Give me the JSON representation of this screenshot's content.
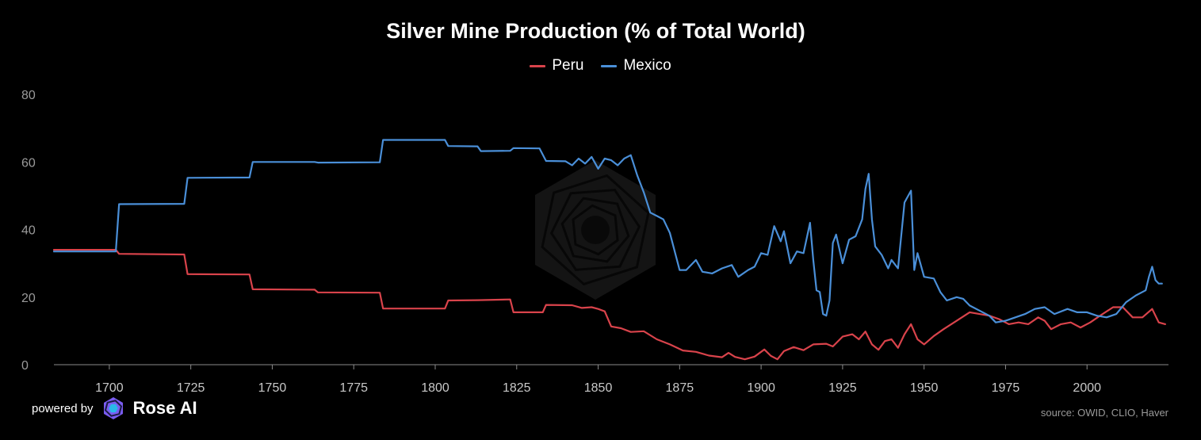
{
  "chart_data": {
    "type": "line",
    "title": "Silver Mine Production (% of Total World)",
    "xlabel": "",
    "ylabel": "",
    "xlim": [
      1683,
      2025
    ],
    "ylim": [
      0,
      80
    ],
    "x_ticks": [
      "1700",
      "1725",
      "1750",
      "1775",
      "1800",
      "1825",
      "1850",
      "1875",
      "1900",
      "1925",
      "1950",
      "1975",
      "2000"
    ],
    "y_ticks": [
      "80",
      "60",
      "40",
      "20",
      "0"
    ],
    "grid": false,
    "legend_position": "top-center",
    "series": [
      {
        "name": "Peru",
        "color": "#d9434b",
        "points": [
          [
            1683,
            34.0
          ],
          [
            1702,
            34.0
          ],
          [
            1703,
            32.8
          ],
          [
            1723,
            32.6
          ],
          [
            1724,
            26.8
          ],
          [
            1743,
            26.7
          ],
          [
            1744,
            22.3
          ],
          [
            1763,
            22.2
          ],
          [
            1764,
            21.4
          ],
          [
            1783,
            21.3
          ],
          [
            1784,
            16.6
          ],
          [
            1803,
            16.6
          ],
          [
            1804,
            19.0
          ],
          [
            1813,
            19.1
          ],
          [
            1823,
            19.3
          ],
          [
            1824,
            15.5
          ],
          [
            1833,
            15.5
          ],
          [
            1834,
            17.7
          ],
          [
            1842,
            17.6
          ],
          [
            1845,
            16.8
          ],
          [
            1848,
            17.0
          ],
          [
            1850,
            16.5
          ],
          [
            1852,
            15.8
          ],
          [
            1854,
            11.3
          ],
          [
            1857,
            10.8
          ],
          [
            1860,
            9.7
          ],
          [
            1864,
            9.9
          ],
          [
            1868,
            7.5
          ],
          [
            1872,
            6.0
          ],
          [
            1876,
            4.2
          ],
          [
            1880,
            3.8
          ],
          [
            1884,
            2.7
          ],
          [
            1888,
            2.2
          ],
          [
            1890,
            3.5
          ],
          [
            1892,
            2.3
          ],
          [
            1895,
            1.6
          ],
          [
            1898,
            2.4
          ],
          [
            1901,
            4.5
          ],
          [
            1903,
            2.6
          ],
          [
            1905,
            1.6
          ],
          [
            1907,
            4.0
          ],
          [
            1910,
            5.2
          ],
          [
            1913,
            4.3
          ],
          [
            1916,
            6.0
          ],
          [
            1920,
            6.2
          ],
          [
            1922,
            5.4
          ],
          [
            1925,
            8.3
          ],
          [
            1928,
            9.0
          ],
          [
            1930,
            7.5
          ],
          [
            1932,
            9.8
          ],
          [
            1934,
            6.0
          ],
          [
            1936,
            4.4
          ],
          [
            1938,
            7.0
          ],
          [
            1940,
            7.5
          ],
          [
            1942,
            5.0
          ],
          [
            1944,
            9.0
          ],
          [
            1946,
            12.0
          ],
          [
            1948,
            7.5
          ],
          [
            1950,
            6.0
          ],
          [
            1953,
            8.5
          ],
          [
            1956,
            10.5
          ],
          [
            1960,
            13.0
          ],
          [
            1964,
            15.5
          ],
          [
            1967,
            15.0
          ],
          [
            1970,
            14.5
          ],
          [
            1973,
            13.5
          ],
          [
            1976,
            12.0
          ],
          [
            1979,
            12.5
          ],
          [
            1982,
            12.0
          ],
          [
            1985,
            14.0
          ],
          [
            1987,
            13.0
          ],
          [
            1989,
            10.5
          ],
          [
            1992,
            12.0
          ],
          [
            1995,
            12.5
          ],
          [
            1998,
            11.0
          ],
          [
            2001,
            12.5
          ],
          [
            2004,
            14.5
          ],
          [
            2008,
            17.0
          ],
          [
            2011,
            17.0
          ],
          [
            2014,
            14.0
          ],
          [
            2017,
            14.0
          ],
          [
            2020,
            16.5
          ],
          [
            2022,
            12.5
          ],
          [
            2024,
            12.0
          ]
        ]
      },
      {
        "name": "Mexico",
        "color": "#4a8fd8",
        "points": [
          [
            1683,
            33.5
          ],
          [
            1702,
            33.5
          ],
          [
            1703,
            47.5
          ],
          [
            1723,
            47.6
          ],
          [
            1724,
            55.3
          ],
          [
            1743,
            55.4
          ],
          [
            1744,
            60.0
          ],
          [
            1763,
            60.0
          ],
          [
            1764,
            59.8
          ],
          [
            1783,
            59.9
          ],
          [
            1784,
            66.5
          ],
          [
            1803,
            66.5
          ],
          [
            1804,
            64.7
          ],
          [
            1813,
            64.6
          ],
          [
            1814,
            63.2
          ],
          [
            1823,
            63.3
          ],
          [
            1824,
            64.1
          ],
          [
            1832,
            64.0
          ],
          [
            1834,
            60.3
          ],
          [
            1840,
            60.2
          ],
          [
            1842,
            59.0
          ],
          [
            1844,
            61.0
          ],
          [
            1846,
            59.5
          ],
          [
            1848,
            61.5
          ],
          [
            1850,
            58.0
          ],
          [
            1852,
            61.0
          ],
          [
            1854,
            60.5
          ],
          [
            1856,
            59.0
          ],
          [
            1858,
            61.0
          ],
          [
            1860,
            62.0
          ],
          [
            1862,
            56.0
          ],
          [
            1864,
            51.0
          ],
          [
            1866,
            45.0
          ],
          [
            1868,
            44.0
          ],
          [
            1870,
            43.0
          ],
          [
            1872,
            39.0
          ],
          [
            1875,
            28.0
          ],
          [
            1877,
            28.0
          ],
          [
            1880,
            31.0
          ],
          [
            1882,
            27.5
          ],
          [
            1885,
            27.0
          ],
          [
            1888,
            28.5
          ],
          [
            1891,
            29.5
          ],
          [
            1893,
            26.0
          ],
          [
            1896,
            28.0
          ],
          [
            1898,
            29.0
          ],
          [
            1900,
            33.0
          ],
          [
            1902,
            32.5
          ],
          [
            1904,
            41.0
          ],
          [
            1906,
            36.5
          ],
          [
            1907,
            39.5
          ],
          [
            1909,
            30.0
          ],
          [
            1911,
            33.5
          ],
          [
            1913,
            33.0
          ],
          [
            1915,
            42.0
          ],
          [
            1916,
            31.0
          ],
          [
            1917,
            22.0
          ],
          [
            1918,
            21.5
          ],
          [
            1919,
            15.0
          ],
          [
            1920,
            14.5
          ],
          [
            1921,
            19.0
          ],
          [
            1922,
            36.0
          ],
          [
            1923,
            38.5
          ],
          [
            1925,
            30.0
          ],
          [
            1927,
            37.0
          ],
          [
            1929,
            38.0
          ],
          [
            1931,
            43.0
          ],
          [
            1932,
            52.0
          ],
          [
            1933,
            56.5
          ],
          [
            1934,
            43.0
          ],
          [
            1935,
            35.0
          ],
          [
            1937,
            32.5
          ],
          [
            1939,
            28.5
          ],
          [
            1940,
            31.0
          ],
          [
            1942,
            28.5
          ],
          [
            1944,
            48.0
          ],
          [
            1946,
            51.5
          ],
          [
            1947,
            28.0
          ],
          [
            1948,
            33.0
          ],
          [
            1950,
            26.0
          ],
          [
            1953,
            25.5
          ],
          [
            1955,
            21.5
          ],
          [
            1957,
            19.0
          ],
          [
            1960,
            20.0
          ],
          [
            1962,
            19.5
          ],
          [
            1964,
            17.5
          ],
          [
            1967,
            16.0
          ],
          [
            1970,
            14.5
          ],
          [
            1972,
            12.5
          ],
          [
            1975,
            13.0
          ],
          [
            1978,
            14.0
          ],
          [
            1981,
            15.0
          ],
          [
            1984,
            16.5
          ],
          [
            1987,
            17.0
          ],
          [
            1990,
            15.0
          ],
          [
            1994,
            16.5
          ],
          [
            1997,
            15.5
          ],
          [
            2000,
            15.5
          ],
          [
            2003,
            14.5
          ],
          [
            2006,
            14.0
          ],
          [
            2009,
            15.0
          ],
          [
            2012,
            18.5
          ],
          [
            2015,
            20.5
          ],
          [
            2018,
            22.0
          ],
          [
            2019,
            26.0
          ],
          [
            2020,
            29.0
          ],
          [
            2021,
            25.0
          ],
          [
            2022,
            24.0
          ],
          [
            2023,
            24.0
          ]
        ]
      }
    ]
  },
  "footer": {
    "powered_by": "powered by",
    "brand": "Rose AI",
    "source": "source: OWID, CLIO, Haver"
  },
  "icons": {
    "brand_logo": "rose-ai-logo-icon",
    "watermark": "rose-ai-watermark-icon"
  },
  "colors": {
    "background": "#000000",
    "axis": "#8a8a8a",
    "tick_label": "#c8c8c8"
  }
}
